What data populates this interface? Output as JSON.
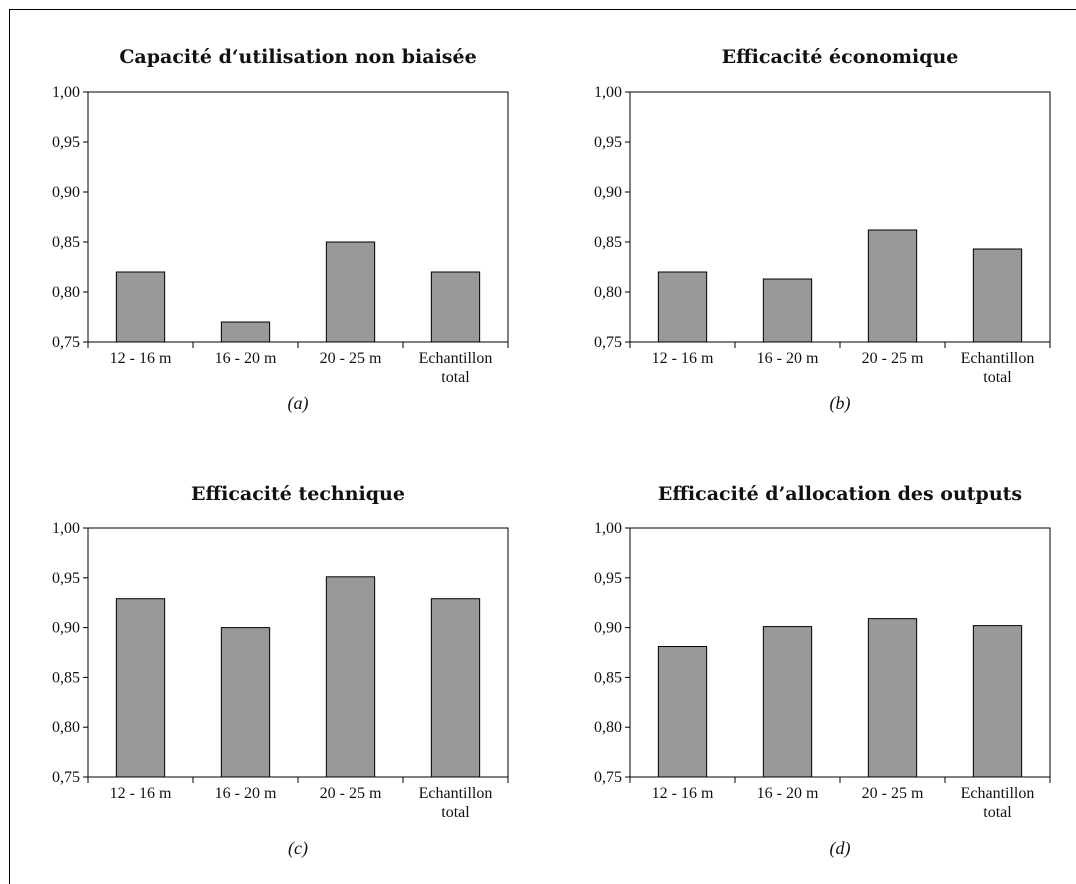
{
  "chart_data": [
    {
      "type": "bar",
      "title": "Capacité d‘utilisation non biaisée",
      "caption": "(a)",
      "categories": [
        [
          "12 - 16 m"
        ],
        [
          "16 - 20 m"
        ],
        [
          "20 - 25 m"
        ],
        [
          "Echantillon",
          "total"
        ]
      ],
      "values": [
        0.82,
        0.77,
        0.85,
        0.82
      ],
      "ylim": [
        0.75,
        1.0
      ],
      "yticks": [
        "0,75",
        "0,80",
        "0,85",
        "0,90",
        "0,95",
        "1,00"
      ],
      "bar_color": "#999999",
      "grid": false
    },
    {
      "type": "bar",
      "title": "Efficacité économique",
      "caption": "(b)",
      "categories": [
        [
          "12 - 16 m"
        ],
        [
          "16 - 20 m"
        ],
        [
          "20 - 25 m"
        ],
        [
          "Echantillon",
          "total"
        ]
      ],
      "values": [
        0.82,
        0.813,
        0.862,
        0.843
      ],
      "ylim": [
        0.75,
        1.0
      ],
      "yticks": [
        "0,75",
        "0,80",
        "0,85",
        "0,90",
        "0,95",
        "1,00"
      ],
      "bar_color": "#999999",
      "grid": false
    },
    {
      "type": "bar",
      "title": "Efficacité technique",
      "caption": "(c)",
      "categories": [
        [
          "12 - 16 m"
        ],
        [
          "16 - 20 m"
        ],
        [
          "20 - 25 m"
        ],
        [
          "Echantillon",
          "total"
        ]
      ],
      "values": [
        0.929,
        0.9,
        0.951,
        0.929
      ],
      "ylim": [
        0.75,
        1.0
      ],
      "yticks": [
        "0,75",
        "0,80",
        "0,85",
        "0,90",
        "0,95",
        "1,00"
      ],
      "bar_color": "#999999",
      "grid": false
    },
    {
      "type": "bar",
      "title": "Efficacité d’allocation des outputs",
      "caption": "(d)",
      "categories": [
        [
          "12 - 16 m"
        ],
        [
          "16 - 20 m"
        ],
        [
          "20 - 25 m"
        ],
        [
          "Echantillon",
          "total"
        ]
      ],
      "values": [
        0.881,
        0.901,
        0.909,
        0.902
      ],
      "ylim": [
        0.75,
        1.0
      ],
      "yticks": [
        "0,75",
        "0,80",
        "0,85",
        "0,90",
        "0,95",
        "1,00"
      ],
      "bar_color": "#999999",
      "grid": false
    }
  ]
}
